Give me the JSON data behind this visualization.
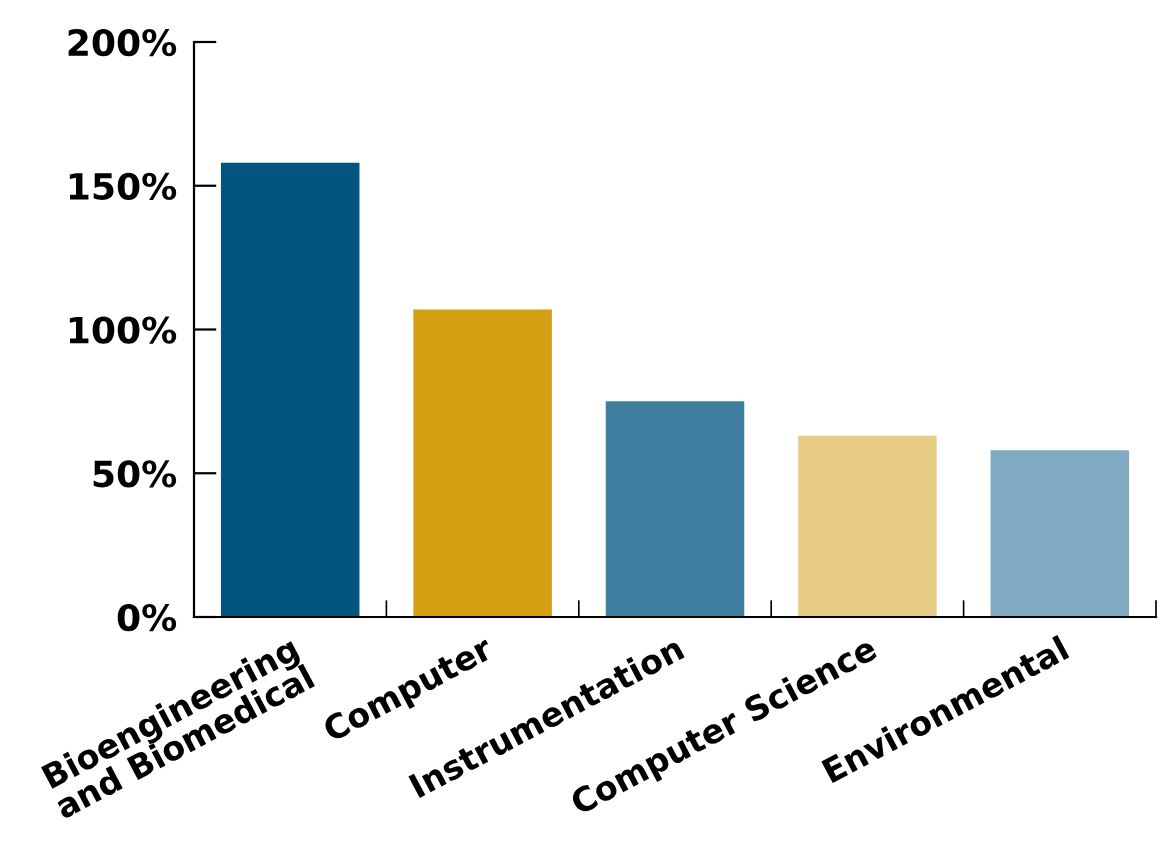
{
  "chart_data": {
    "type": "bar",
    "categories": [
      "Bioengineering\nand Biomedical",
      "Computer",
      "Instrumentation",
      "Computer Science",
      "Environmental"
    ],
    "values": [
      158,
      107,
      75,
      63,
      58
    ],
    "colors": [
      "#03547f",
      "#d49f12",
      "#417fa0",
      "#e9cd87",
      "#80aac1"
    ],
    "ylim": [
      0,
      200
    ],
    "yticks": [
      {
        "value": 0,
        "label": "0%"
      },
      {
        "value": 50,
        "label": "50%"
      },
      {
        "value": 100,
        "label": "100%"
      },
      {
        "value": 150,
        "label": "150%"
      },
      {
        "value": 200,
        "label": "200%"
      }
    ],
    "grid": false
  }
}
